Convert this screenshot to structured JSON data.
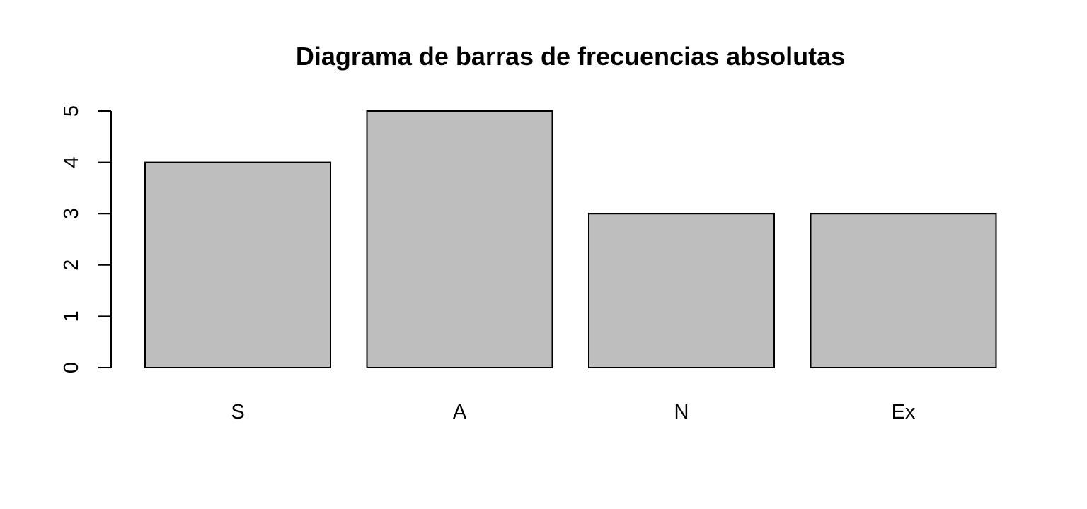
{
  "chart_data": {
    "type": "bar",
    "title": "Diagrama de barras de frecuencias absolutas",
    "xlabel": "",
    "ylabel": "",
    "categories": [
      "S",
      "A",
      "N",
      "Ex"
    ],
    "values": [
      4,
      5,
      3,
      3
    ],
    "ylim": [
      0,
      5
    ],
    "yticks": [
      "0",
      "1",
      "2",
      "3",
      "4",
      "5"
    ],
    "grid": false,
    "legend": "none",
    "bar_color": "#bebebe",
    "bar_border_color": "#000000"
  }
}
